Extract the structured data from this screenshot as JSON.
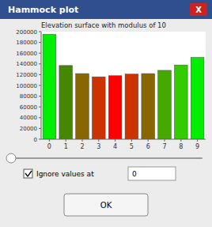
{
  "chart_data": {
    "type": "bar",
    "title": "Elevation surface with modulus of 10",
    "categories": [
      0,
      1,
      2,
      3,
      4,
      5,
      6,
      7,
      8,
      9
    ],
    "values": [
      195000,
      137000,
      122000,
      116000,
      118000,
      121000,
      122000,
      128000,
      138000,
      152000
    ],
    "colors": [
      "#00ee00",
      "#448800",
      "#886600",
      "#cc3300",
      "#ff0000",
      "#cc3300",
      "#886600",
      "#44aa00",
      "#33cc00",
      "#00ee00"
    ],
    "ylim": [
      0,
      200000
    ],
    "yticks": [
      0,
      20000,
      40000,
      60000,
      80000,
      100000,
      120000,
      140000,
      160000,
      180000,
      200000
    ],
    "grid": false,
    "annotations": [
      "Hammock plot",
      "X",
      "Ignore values at",
      "0",
      "OK"
    ]
  }
}
